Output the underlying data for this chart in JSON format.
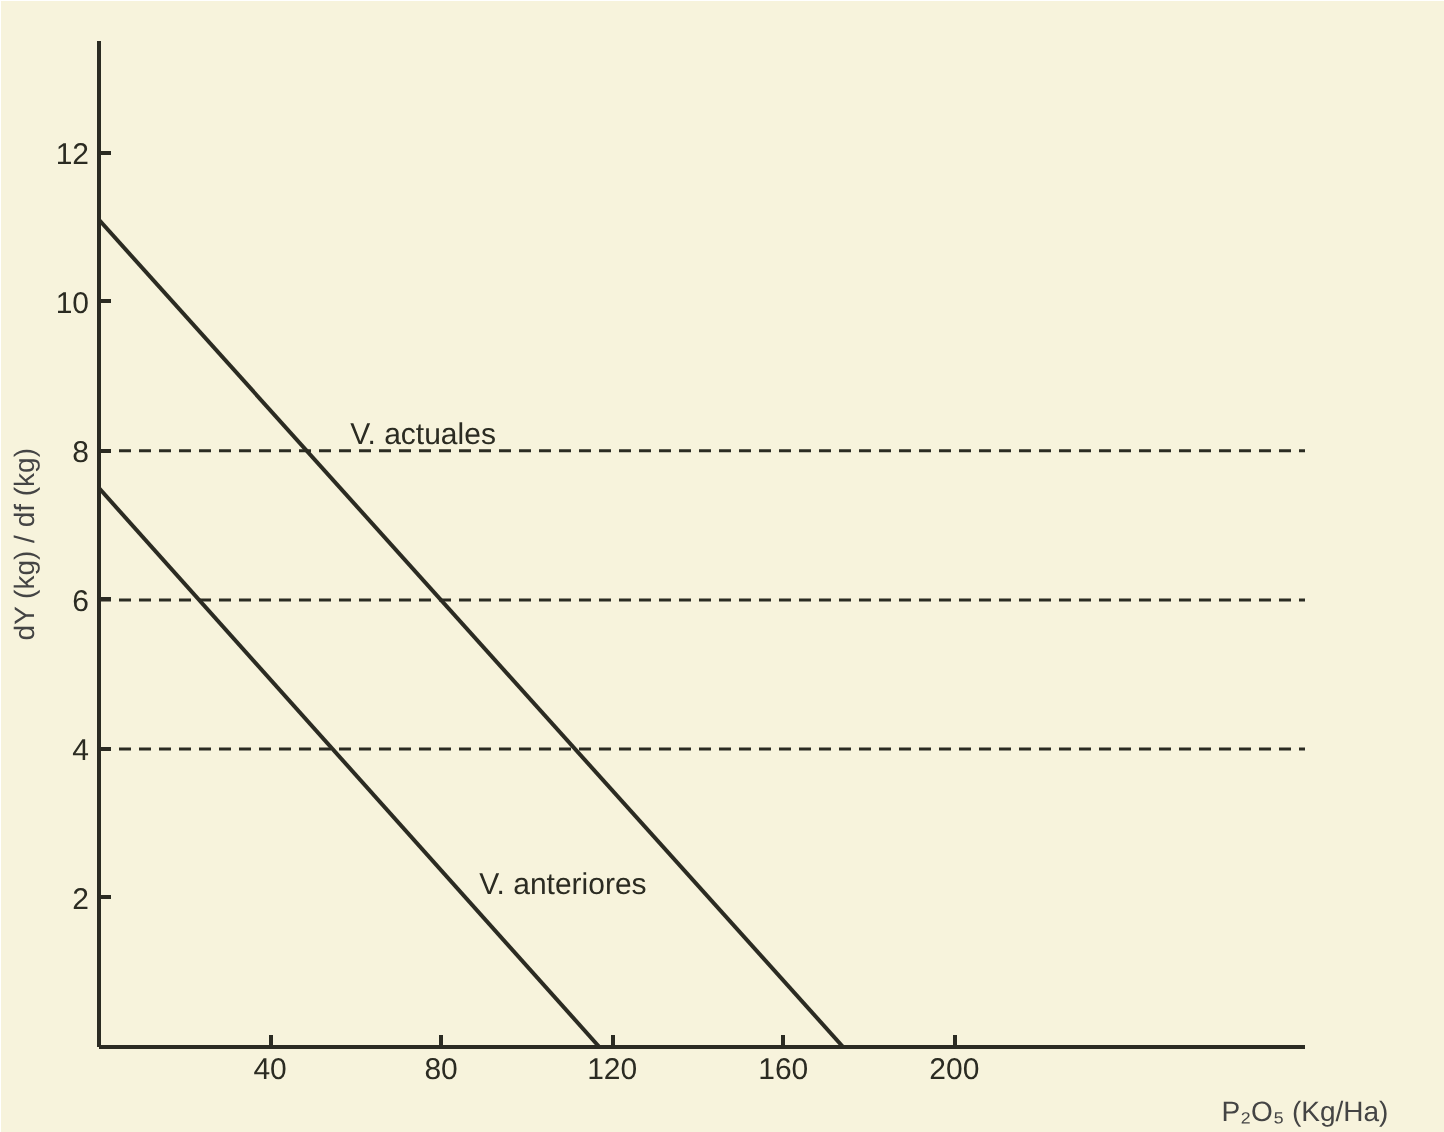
{
  "chart_data": {
    "type": "line",
    "ylabel": "dY (kg) / df (kg)",
    "xlabel": "P₂O₅ (Kg/Ha)",
    "xlim": [
      0,
      282
    ],
    "ylim": [
      0,
      13.5
    ],
    "xticks": [
      40,
      80,
      120,
      160,
      200
    ],
    "yticks": [
      2,
      4,
      6,
      8,
      10,
      12
    ],
    "grid": false,
    "marker": "none",
    "line_style": "solid",
    "series": [
      {
        "name": "V. actuales",
        "color": "#2b2b22",
        "x": [
          0,
          174
        ],
        "values": [
          11.1,
          0
        ]
      },
      {
        "name": "V. anteriores",
        "color": "#2b2b22",
        "x": [
          0,
          117
        ],
        "values": [
          7.5,
          0
        ]
      }
    ],
    "ref_lines": [
      {
        "axis": "y",
        "value": 8,
        "color": "#2b2b22",
        "line_style": "dashed"
      },
      {
        "axis": "y",
        "value": 6,
        "color": "#2b2b22",
        "line_style": "dashed"
      },
      {
        "axis": "y",
        "value": 4,
        "color": "#2b2b22",
        "line_style": "dashed"
      }
    ]
  }
}
